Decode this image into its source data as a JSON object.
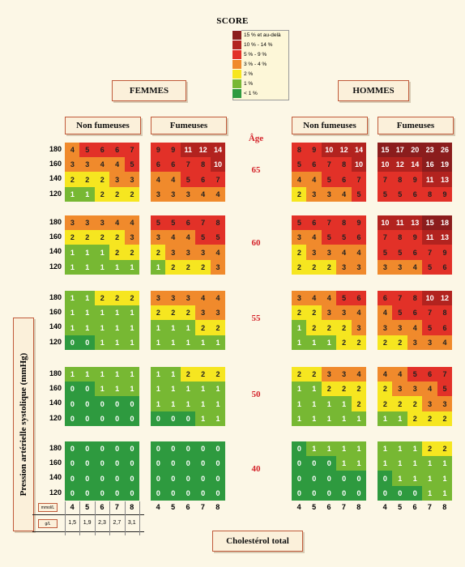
{
  "chart_data": {
    "type": "heatmap",
    "title": "SCORE",
    "legend": [
      {
        "label": "15 % et au-delà",
        "color": "#8b1d1d"
      },
      {
        "label": "10 % - 14 %",
        "color": "#b2231f"
      },
      {
        "label": "5 % - 9 %",
        "color": "#e23128"
      },
      {
        "label": "3 % - 4 %",
        "color": "#f08a2c"
      },
      {
        "label": "2 %",
        "color": "#f6e620"
      },
      {
        "label": "1 %",
        "color": "#77b833"
      },
      {
        "label": "< 1 %",
        "color": "#2e9a3f"
      }
    ],
    "sex_labels": [
      "FEMMES",
      "HOMMES"
    ],
    "smoking_labels": [
      "Non fumeuses",
      "Fumeuses",
      "Non fumeuses",
      "Fumeuses"
    ],
    "age_header": "Âge",
    "ages": [
      "65",
      "60",
      "55",
      "50",
      "40"
    ],
    "sbp": [
      "180",
      "160",
      "140",
      "120"
    ],
    "chol_mmol": [
      "4",
      "5",
      "6",
      "7",
      "8"
    ],
    "chol_gl": [
      "1,5",
      "1,9",
      "2,3",
      "2,7",
      "3,1"
    ],
    "unit_mmol": "mmol/L",
    "unit_gl": "g/L",
    "ylabel": "Pression artérielle systolique (mmHg)",
    "xlabel": "Cholestérol total",
    "panels": [
      [
        [
          [
            4,
            5,
            6,
            6,
            7
          ],
          [
            3,
            3,
            4,
            4,
            5
          ],
          [
            2,
            2,
            2,
            3,
            3
          ],
          [
            1,
            1,
            2,
            2,
            2
          ]
        ],
        [
          [
            9,
            9,
            11,
            12,
            14
          ],
          [
            6,
            6,
            7,
            8,
            10
          ],
          [
            4,
            4,
            5,
            6,
            7
          ],
          [
            3,
            3,
            3,
            4,
            4
          ]
        ],
        [
          [
            8,
            9,
            10,
            12,
            14
          ],
          [
            5,
            6,
            7,
            8,
            10
          ],
          [
            4,
            4,
            5,
            6,
            7
          ],
          [
            2,
            3,
            3,
            4,
            5
          ]
        ],
        [
          [
            15,
            17,
            20,
            23,
            26
          ],
          [
            10,
            12,
            14,
            16,
            19
          ],
          [
            7,
            8,
            9,
            11,
            13
          ],
          [
            5,
            5,
            6,
            8,
            9
          ]
        ]
      ],
      [
        [
          [
            3,
            3,
            3,
            4,
            4
          ],
          [
            2,
            2,
            2,
            2,
            3
          ],
          [
            1,
            1,
            1,
            2,
            2
          ],
          [
            1,
            1,
            1,
            1,
            1
          ]
        ],
        [
          [
            5,
            5,
            6,
            7,
            8
          ],
          [
            3,
            4,
            4,
            5,
            5
          ],
          [
            2,
            3,
            3,
            3,
            4
          ],
          [
            1,
            2,
            2,
            2,
            3
          ]
        ],
        [
          [
            5,
            6,
            7,
            8,
            9
          ],
          [
            3,
            4,
            5,
            5,
            6
          ],
          [
            2,
            3,
            3,
            4,
            4
          ],
          [
            2,
            2,
            2,
            3,
            3
          ]
        ],
        [
          [
            10,
            11,
            13,
            15,
            18
          ],
          [
            7,
            8,
            9,
            11,
            13
          ],
          [
            5,
            5,
            6,
            7,
            9
          ],
          [
            3,
            3,
            4,
            5,
            6
          ]
        ]
      ],
      [
        [
          [
            1,
            1,
            2,
            2,
            2
          ],
          [
            1,
            1,
            1,
            1,
            1
          ],
          [
            1,
            1,
            1,
            1,
            1
          ],
          [
            0,
            0,
            1,
            1,
            1
          ]
        ],
        [
          [
            3,
            3,
            3,
            4,
            4
          ],
          [
            2,
            2,
            2,
            3,
            3
          ],
          [
            1,
            1,
            1,
            2,
            2
          ],
          [
            1,
            1,
            1,
            1,
            1
          ]
        ],
        [
          [
            3,
            4,
            4,
            5,
            6
          ],
          [
            2,
            2,
            3,
            3,
            4
          ],
          [
            1,
            2,
            2,
            2,
            3
          ],
          [
            1,
            1,
            1,
            2,
            2
          ]
        ],
        [
          [
            6,
            7,
            8,
            10,
            12
          ],
          [
            4,
            5,
            6,
            7,
            8
          ],
          [
            3,
            3,
            4,
            5,
            6
          ],
          [
            2,
            2,
            3,
            3,
            4
          ]
        ]
      ],
      [
        [
          [
            1,
            1,
            1,
            1,
            1
          ],
          [
            0,
            0,
            1,
            1,
            1
          ],
          [
            0,
            0,
            0,
            0,
            0
          ],
          [
            0,
            0,
            0,
            0,
            0
          ]
        ],
        [
          [
            1,
            1,
            2,
            2,
            2
          ],
          [
            1,
            1,
            1,
            1,
            1
          ],
          [
            1,
            1,
            1,
            1,
            1
          ],
          [
            0,
            0,
            0,
            1,
            1
          ]
        ],
        [
          [
            2,
            2,
            3,
            3,
            4
          ],
          [
            1,
            1,
            2,
            2,
            2
          ],
          [
            1,
            1,
            1,
            1,
            2
          ],
          [
            1,
            1,
            1,
            1,
            1
          ]
        ],
        [
          [
            4,
            4,
            5,
            6,
            7
          ],
          [
            2,
            3,
            3,
            4,
            5
          ],
          [
            2,
            2,
            2,
            3,
            3
          ],
          [
            1,
            1,
            2,
            2,
            2
          ]
        ]
      ],
      [
        [
          [
            0,
            0,
            0,
            0,
            0
          ],
          [
            0,
            0,
            0,
            0,
            0
          ],
          [
            0,
            0,
            0,
            0,
            0
          ],
          [
            0,
            0,
            0,
            0,
            0
          ]
        ],
        [
          [
            0,
            0,
            0,
            0,
            0
          ],
          [
            0,
            0,
            0,
            0,
            0
          ],
          [
            0,
            0,
            0,
            0,
            0
          ],
          [
            0,
            0,
            0,
            0,
            0
          ]
        ],
        [
          [
            0,
            1,
            1,
            1,
            1
          ],
          [
            0,
            0,
            0,
            1,
            1
          ],
          [
            0,
            0,
            0,
            0,
            0
          ],
          [
            0,
            0,
            0,
            0,
            0
          ]
        ],
        [
          [
            1,
            1,
            1,
            2,
            2
          ],
          [
            1,
            1,
            1,
            1,
            1
          ],
          [
            0,
            1,
            1,
            1,
            1
          ],
          [
            0,
            0,
            0,
            1,
            1
          ]
        ]
      ]
    ]
  }
}
